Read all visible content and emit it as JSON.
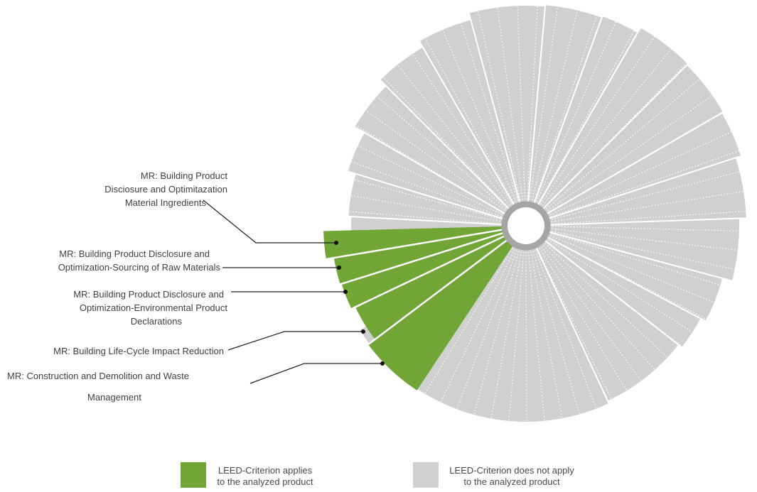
{
  "chart_data": {
    "type": "pie",
    "subtype": "radial-segment-wheel",
    "colors": {
      "applies": "#71a536",
      "not_applies": "#d0d0d0",
      "hub_ring": "#a5a5a5"
    },
    "highlighted_segments": [
      {
        "lines": [
          "MR: Building Product",
          "Disciosure and Optimitazation",
          "Material Ingredients"
        ],
        "applies": true
      },
      {
        "lines": [
          "MR: Building Product Disclosure and",
          "Optimization-Sourcing of Raw Materials"
        ],
        "applies": true
      },
      {
        "lines": [
          "MR: Building Product Disclosure and",
          "Optimization-Environmental Product",
          "Declarations"
        ],
        "applies": true
      },
      {
        "lines": [
          "MR: Building Life-Cycle Impact Reduction"
        ],
        "applies": true
      },
      {
        "lines": [
          "MR: Construction and Demolition and Waste",
          "Management"
        ],
        "applies": true
      }
    ],
    "legend": [
      {
        "key": "applies",
        "lines": [
          "LEED-Criterion applies",
          "to the analyzed product"
        ]
      },
      {
        "key": "not_applies",
        "lines": [
          "LEED-Criterion does not apply",
          "to the analyzed product"
        ]
      }
    ]
  }
}
